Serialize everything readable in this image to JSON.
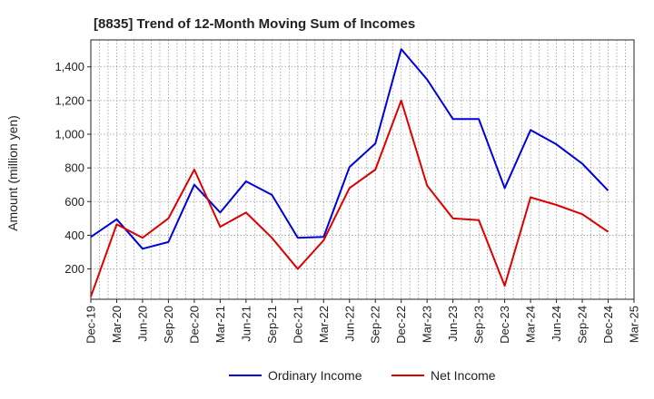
{
  "chart_data": {
    "type": "line",
    "title": "[8835]  Trend of 12-Month Moving Sum of Incomes",
    "xlabel": "",
    "ylabel": "Amount (million yen)",
    "categories": [
      "Dec-19",
      "Mar-20",
      "Jun-20",
      "Sep-20",
      "Dec-20",
      "Mar-21",
      "Jun-21",
      "Sep-21",
      "Dec-21",
      "Mar-22",
      "Jun-22",
      "Sep-22",
      "Dec-22",
      "Mar-23",
      "Jun-23",
      "Sep-23",
      "Dec-23",
      "Mar-24",
      "Jun-24",
      "Sep-24",
      "Dec-24",
      "Mar-25"
    ],
    "yticks": [
      200,
      400,
      600,
      800,
      1000,
      1200,
      1400
    ],
    "ytick_labels": [
      "200",
      "400",
      "600",
      "800",
      "1,000",
      "1,200",
      "1,400"
    ],
    "ylim": [
      20,
      1560
    ],
    "grid": true,
    "legend_position": "bottom",
    "series": [
      {
        "name": "Ordinary Income",
        "color": "#0000dd",
        "values": [
          390,
          495,
          320,
          360,
          700,
          535,
          720,
          640,
          385,
          390,
          805,
          945,
          1505,
          1325,
          1090,
          1090,
          680,
          1025,
          940,
          825,
          665,
          null
        ]
      },
      {
        "name": "Net Income",
        "color": "#dd0000",
        "values": [
          35,
          465,
          385,
          500,
          790,
          450,
          535,
          385,
          200,
          370,
          680,
          790,
          1200,
          695,
          500,
          490,
          100,
          625,
          580,
          525,
          420,
          null
        ]
      }
    ]
  }
}
